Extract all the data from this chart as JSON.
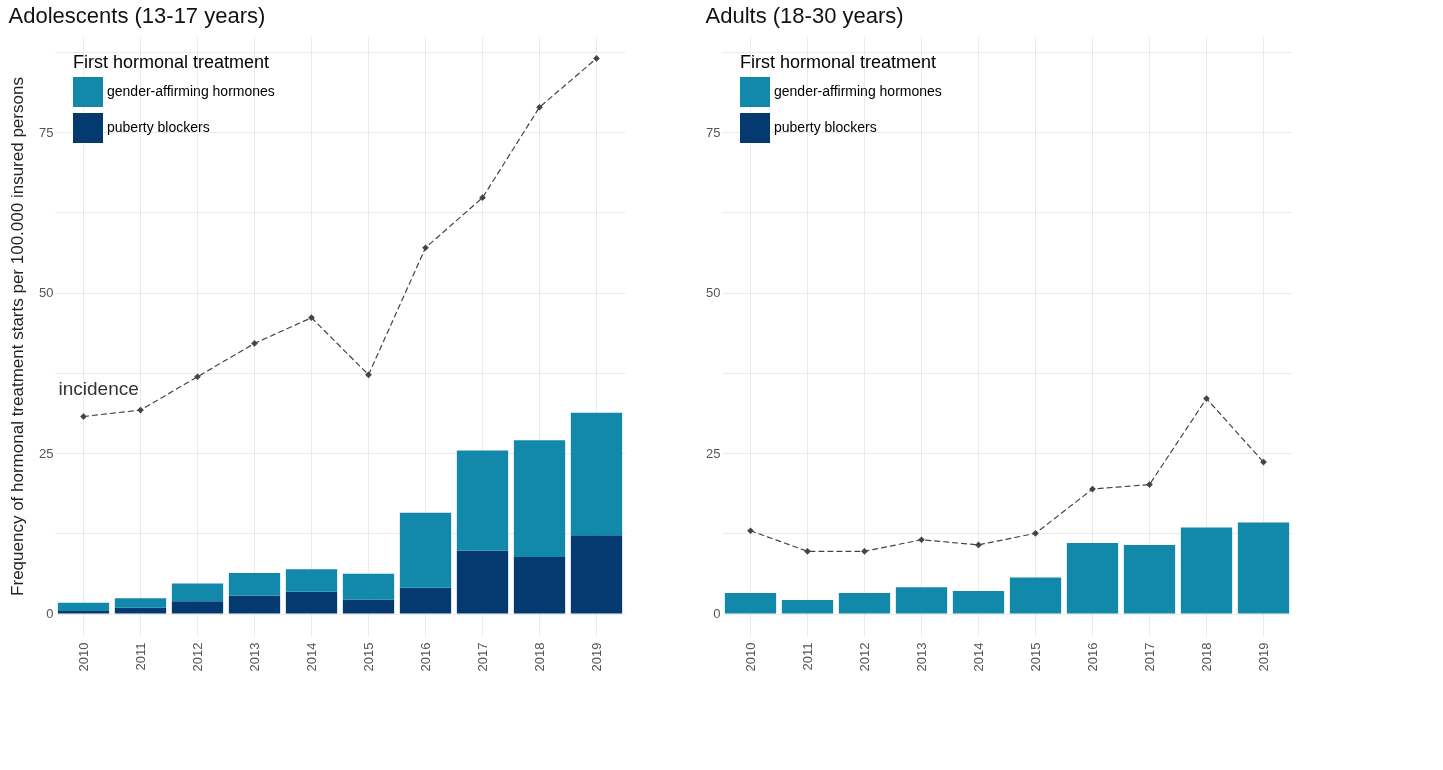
{
  "chart_data": [
    {
      "type": "bar",
      "title": "Adolescents (13-17 years)",
      "ylabel": "Frequency of hormonal treatment starts per 100.000 insured persons",
      "legend_title": "First hormonal treatment",
      "categories": [
        "2010",
        "2011",
        "2012",
        "2013",
        "2014",
        "2015",
        "2016",
        "2017",
        "2018",
        "2019"
      ],
      "stacked": true,
      "ylim": [
        -3.5,
        90
      ],
      "yticks": [
        0,
        {
          "value": 12.5,
          "label": null
        },
        25,
        {
          "value": 37.5,
          "label": null
        },
        50,
        {
          "value": 62.5,
          "label": null
        },
        75,
        {
          "value": 87.5,
          "label": null
        }
      ],
      "grid": true,
      "legend": "top left",
      "annotations": [
        {
          "text": "incidence",
          "x": "2010",
          "y": 30.7
        }
      ],
      "series": [
        {
          "name": "puberty blockers",
          "color": "#043a70",
          "values": [
            0.4,
            0.9,
            1.9,
            2.8,
            3.4,
            2.2,
            4.0,
            9.8,
            8.8,
            12.2
          ]
        },
        {
          "name": "gender-affirming hormones",
          "color": "#1289ab",
          "values": [
            1.3,
            1.5,
            2.8,
            3.5,
            3.5,
            4.0,
            11.7,
            15.6,
            18.2,
            19.1
          ]
        },
        {
          "type": "line",
          "color": "#444444",
          "marker": "diamond",
          "line_style": "dashed",
          "values": [
            30.7,
            31.7,
            36.9,
            42.1,
            46.1,
            37.2,
            57.0,
            64.8,
            78.9,
            86.5
          ]
        }
      ]
    },
    {
      "type": "bar",
      "title": "Adults (18-30 years)",
      "legend_title": "First hormonal treatment",
      "categories": [
        "2010",
        "2011",
        "2012",
        "2013",
        "2014",
        "2015",
        "2016",
        "2017",
        "2018",
        "2019"
      ],
      "stacked": true,
      "ylim": [
        -3.5,
        90
      ],
      "yticks": [
        0,
        {
          "value": 12.5,
          "label": null
        },
        25,
        {
          "value": 37.5,
          "label": null
        },
        50,
        {
          "value": 62.5,
          "label": null
        },
        75,
        {
          "value": 87.5,
          "label": null
        }
      ],
      "grid": true,
      "legend": "top left",
      "series": [
        {
          "name": "puberty blockers",
          "color": "#043a70",
          "values": [
            null,
            null,
            null,
            null,
            null,
            null,
            null,
            null,
            null,
            null
          ]
        },
        {
          "name": "gender-affirming hormones",
          "color": "#1289ab",
          "values": [
            3.2,
            2.1,
            3.2,
            4.1,
            3.5,
            5.6,
            11.0,
            10.7,
            13.4,
            14.2
          ]
        },
        {
          "type": "line",
          "color": "#444444",
          "marker": "diamond",
          "line_style": "dashed",
          "values": [
            12.9,
            9.7,
            9.7,
            11.5,
            10.7,
            12.5,
            19.4,
            20.1,
            33.5,
            23.6
          ]
        }
      ]
    }
  ]
}
